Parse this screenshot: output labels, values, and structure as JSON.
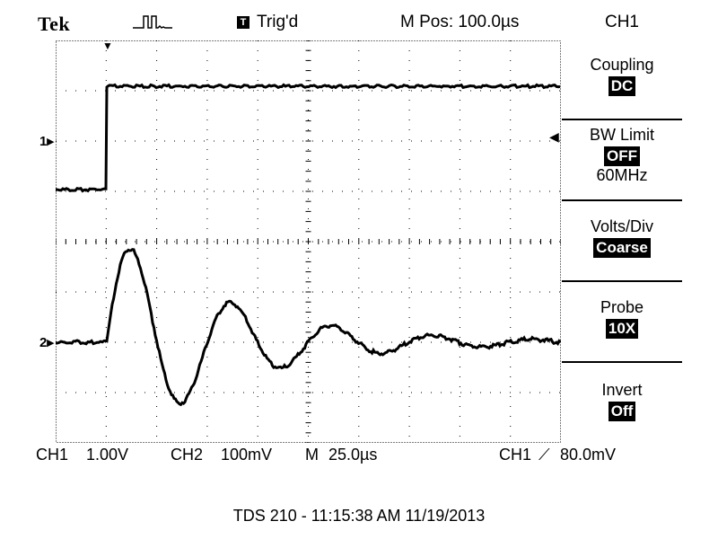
{
  "header": {
    "brand": "Tek",
    "acquire_icon": "pulse-acquire-icon",
    "trigger_badge": "T",
    "trigger_status": "Trig'd",
    "main_position": "M Pos: 100.0µs",
    "channel_title": "CH1"
  },
  "markers": {
    "ch1": "1",
    "ch2": "2"
  },
  "menu": {
    "items": [
      {
        "label": "Coupling",
        "value": "DC",
        "sub": ""
      },
      {
        "label": "BW Limit",
        "value": "OFF",
        "sub": "60MHz"
      },
      {
        "label": "Volts/Div",
        "value": "Coarse",
        "sub": ""
      },
      {
        "label": "Probe",
        "value": "10X",
        "sub": ""
      },
      {
        "label": "Invert",
        "value": "Off",
        "sub": ""
      }
    ]
  },
  "status": {
    "ch1_label": "CH1",
    "ch1_scale": "1.00V",
    "ch2_label": "CH2",
    "ch2_scale": "100mV",
    "time_label": "M",
    "time_scale": "25.0µs",
    "trigger_source": "CH1",
    "trigger_level": "80.0mV"
  },
  "footer": "TDS 210 - 11:15:38 AM   11/19/2013",
  "colors": {
    "trace": "#000000",
    "background": "#ffffff"
  }
}
